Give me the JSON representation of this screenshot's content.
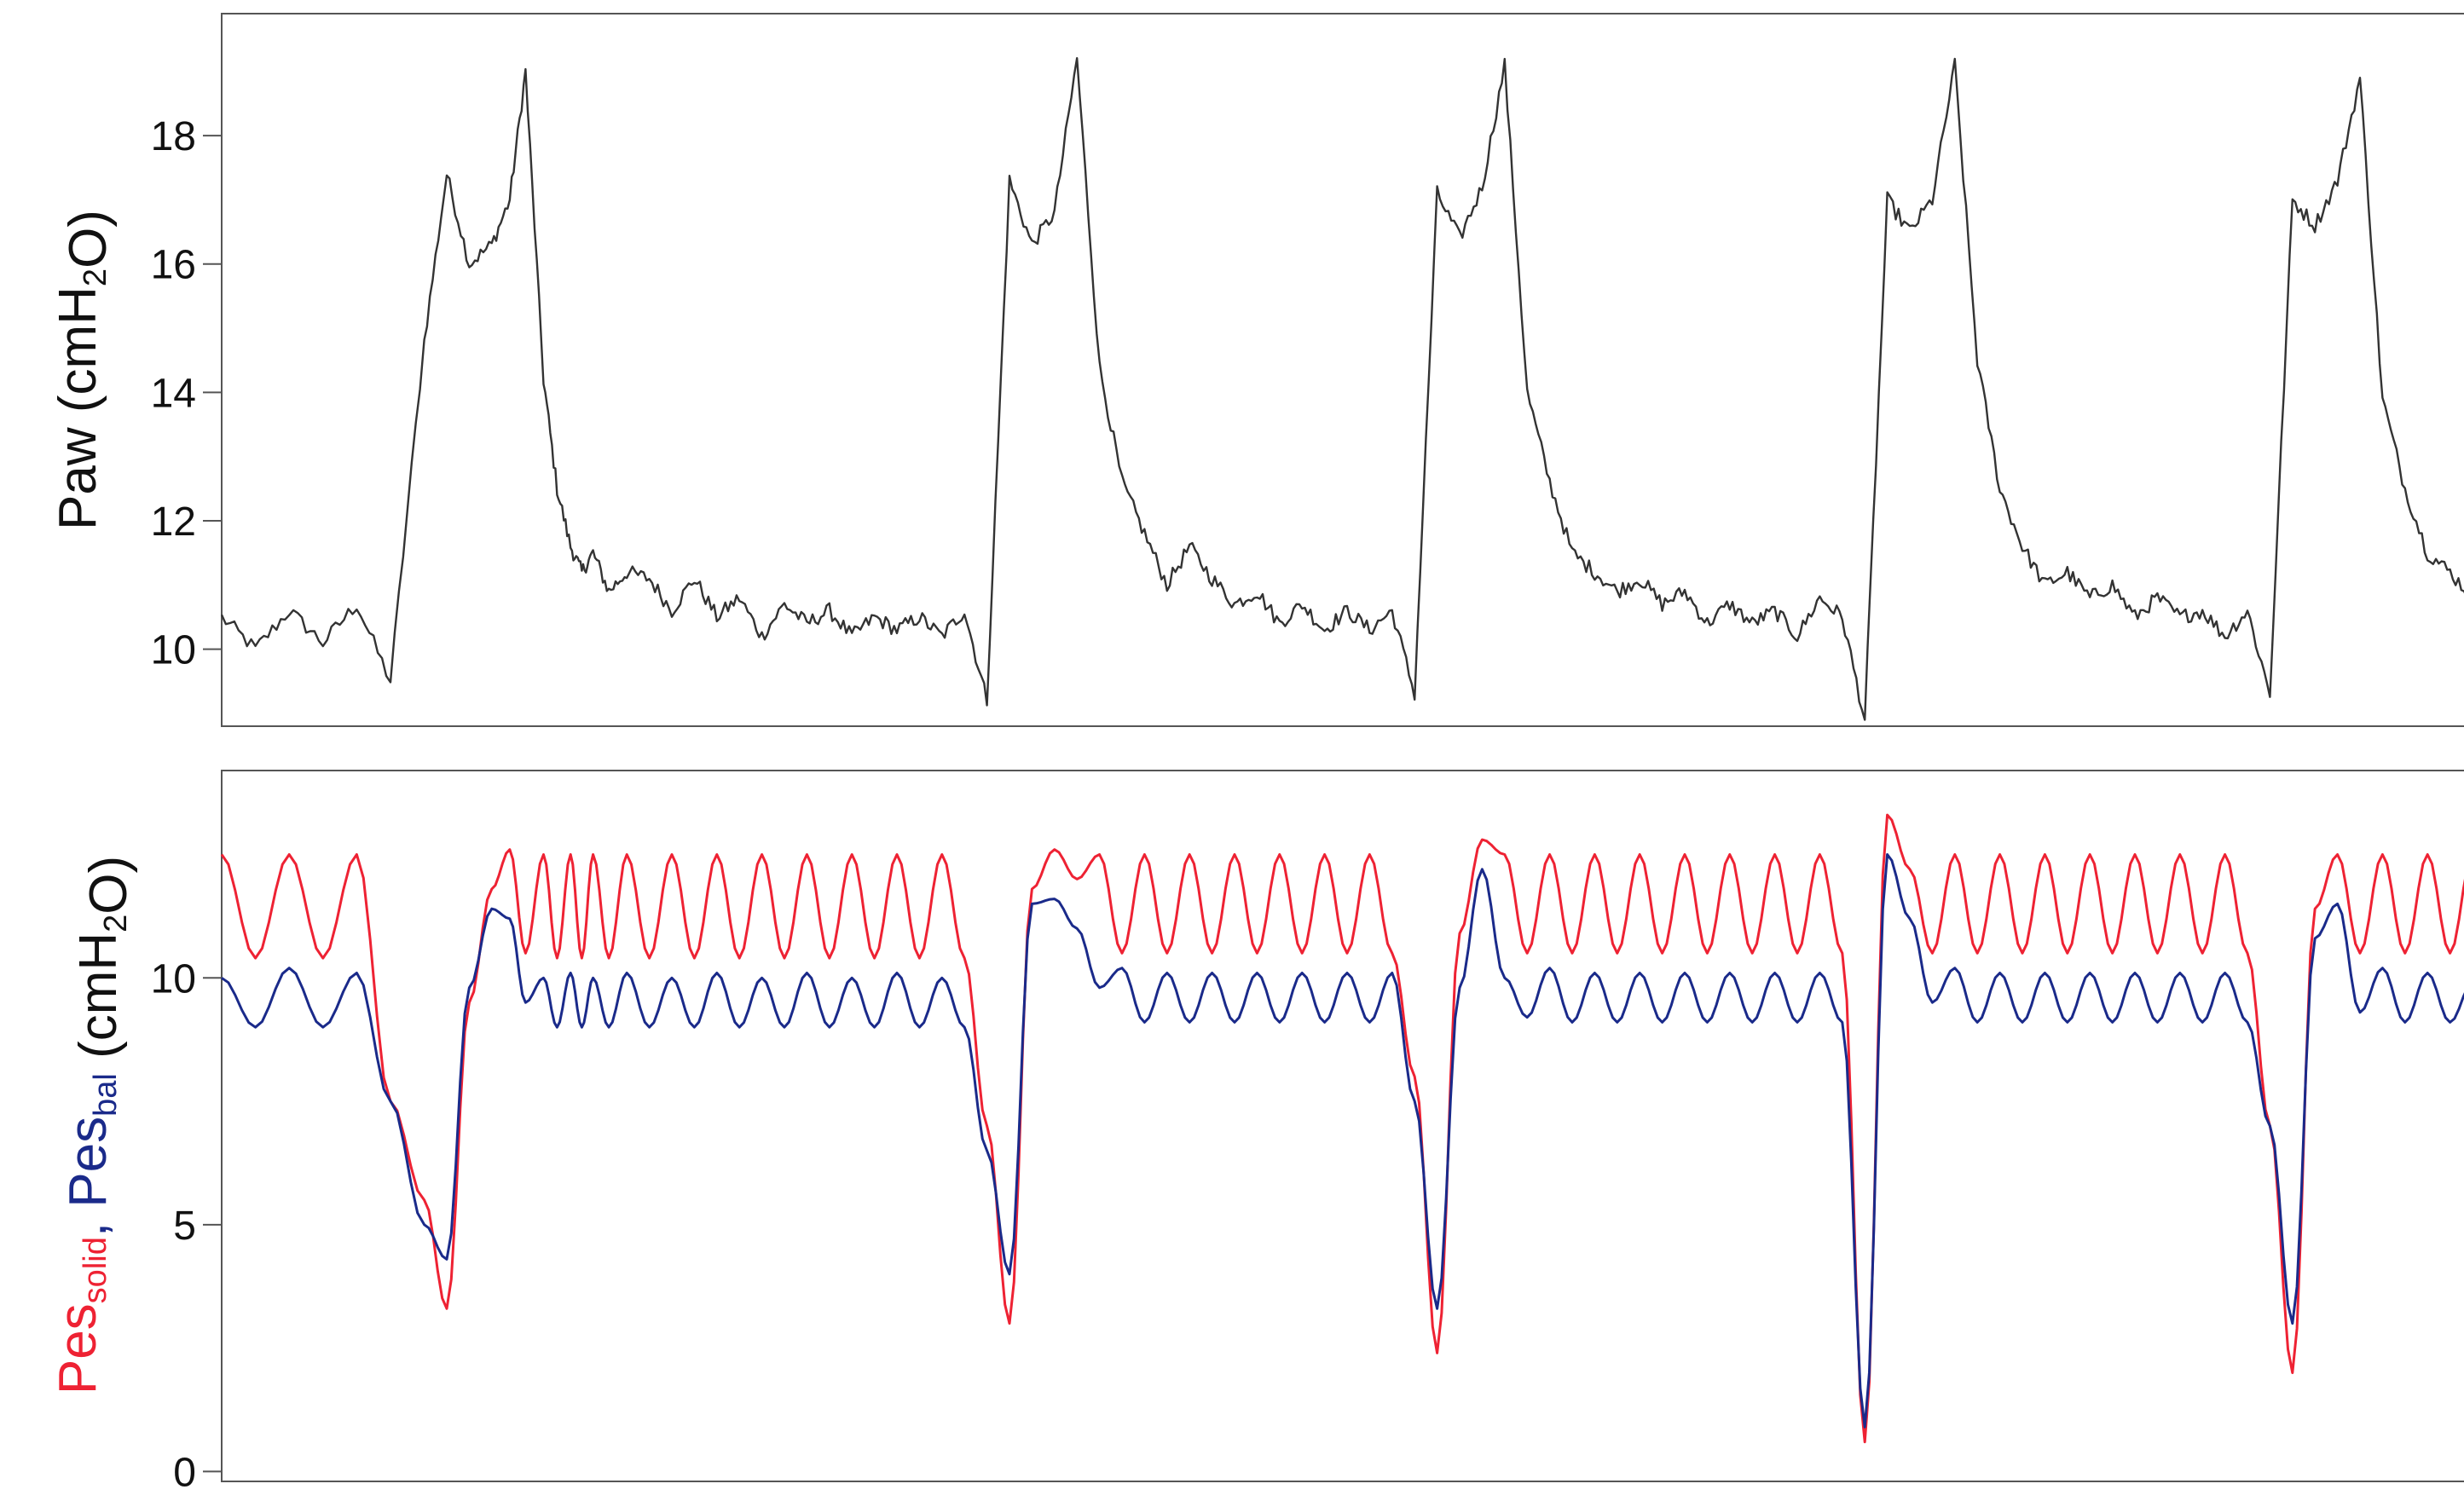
{
  "figure": {
    "background": "#ffffff"
  },
  "chart_data": [
    {
      "type": "line",
      "panel": "top",
      "ylabel": {
        "parts": [
          {
            "text": "Paw (cmH"
          },
          {
            "text": "2",
            "sub": true
          },
          {
            "text": "O)"
          }
        ]
      },
      "yticks": [
        10,
        12,
        14,
        16,
        18
      ],
      "ylim": [
        8.8,
        19.9
      ],
      "xlim": [
        0,
        100
      ],
      "grid": false,
      "legend": "none",
      "series": [
        {
          "color": "#333333",
          "noise": 0.12,
          "x": [
            0,
            1.5,
            3,
            4.5,
            6,
            7.5,
            9,
            10,
            11,
            12,
            12.8,
            13.5,
            14.3,
            14.9,
            15.5,
            16,
            16.5,
            17.2,
            18,
            19,
            20,
            21,
            22,
            23,
            24,
            25,
            26,
            27,
            28,
            29,
            30,
            31,
            32,
            33,
            34,
            35,
            36,
            37,
            38,
            39,
            40,
            41,
            42,
            43,
            44,
            45,
            46,
            47,
            48,
            49,
            50,
            51,
            52,
            53,
            54,
            55,
            56,
            57,
            58,
            59,
            60,
            61,
            62,
            63,
            64,
            65,
            66,
            67,
            68,
            69,
            70,
            71,
            72,
            73,
            74,
            75,
            76,
            77,
            78,
            79,
            80,
            81,
            82,
            83,
            84,
            85,
            86,
            87,
            88,
            89,
            90,
            91,
            92,
            93,
            94,
            95,
            96,
            97,
            98,
            99,
            100
          ],
          "y": [
            10.5,
            10.0,
            10.6,
            10.1,
            10.7,
            9.5,
            14.8,
            17.4,
            16.0,
            16.3,
            17.0,
            19.0,
            14.2,
            12.5,
            11.6,
            11.2,
            11.5,
            10.9,
            11.2,
            11.1,
            10.6,
            11.1,
            10.5,
            10.8,
            10.2,
            10.7,
            10.4,
            10.6,
            10.2,
            10.5,
            10.3,
            10.5,
            10.2,
            10.6,
            9.2,
            17.3,
            16.3,
            16.8,
            19.2,
            14.4,
            12.6,
            11.8,
            11.0,
            11.6,
            11.1,
            10.7,
            10.9,
            10.4,
            10.7,
            10.3,
            10.6,
            10.3,
            10.6,
            9.3,
            17.1,
            16.4,
            17.2,
            19.1,
            14.0,
            12.6,
            11.5,
            11.2,
            10.9,
            11.1,
            10.7,
            10.9,
            10.4,
            10.7,
            10.4,
            10.6,
            10.2,
            10.8,
            10.5,
            8.9,
            17.0,
            16.5,
            17.0,
            19.1,
            14.5,
            12.5,
            11.6,
            11.0,
            11.2,
            10.8,
            11.0,
            10.5,
            10.8,
            10.5,
            10.6,
            10.2,
            10.6,
            9.3,
            17.0,
            16.6,
            17.3,
            18.9,
            13.9,
            12.5,
            11.5,
            11.2,
            10.8
          ]
        }
      ]
    },
    {
      "type": "line",
      "panel": "bottom",
      "ylabel": {
        "parts": [
          {
            "text": "Pes",
            "color": "#ee2233"
          },
          {
            "text": "solid",
            "sub": true,
            "color": "#ee2233"
          },
          {
            "text": ", ",
            "color": "#1a2a8a"
          },
          {
            "text": "Pes",
            "color": "#1a2a8a"
          },
          {
            "text": "bal",
            "sub": true,
            "color": "#1a2a8a"
          },
          {
            "text": " (cmH",
            "color": "#111111"
          },
          {
            "text": "2",
            "sub": true,
            "color": "#111111"
          },
          {
            "text": "O)",
            "color": "#111111"
          }
        ]
      },
      "yticks": [
        0,
        5,
        10
      ],
      "ylim": [
        -0.2,
        14.2
      ],
      "xlim": [
        0,
        100
      ],
      "grid": false,
      "legend": "none",
      "series": [
        {
          "color": "#ee2233",
          "noise": 0,
          "x": [
            0,
            1.5,
            3,
            4.5,
            6,
            7.5,
            9,
            10,
            11,
            12,
            12.8,
            13.5,
            14.3,
            14.9,
            15.5,
            16,
            16.5,
            17.2,
            18,
            19,
            20,
            21,
            22,
            23,
            24,
            25,
            26,
            27,
            28,
            29,
            30,
            31,
            32,
            33,
            34,
            35,
            36,
            37,
            38,
            39,
            40,
            41,
            42,
            43,
            44,
            45,
            46,
            47,
            48,
            49,
            50,
            51,
            52,
            53,
            54,
            55,
            56,
            57,
            58,
            59,
            60,
            61,
            62,
            63,
            64,
            65,
            66,
            67,
            68,
            69,
            70,
            71,
            72,
            73,
            74,
            75,
            76,
            77,
            78,
            79,
            80,
            81,
            82,
            83,
            84,
            85,
            86,
            87,
            88,
            89,
            90,
            91,
            92,
            93,
            94,
            95,
            96,
            97,
            98,
            99,
            100
          ],
          "y": [
            12.5,
            10.4,
            12.5,
            10.4,
            12.5,
            7.5,
            5.5,
            3.3,
            9.5,
            11.8,
            12.6,
            10.5,
            12.5,
            10.4,
            12.5,
            10.4,
            12.5,
            10.4,
            12.5,
            10.4,
            12.5,
            10.4,
            12.5,
            10.4,
            12.5,
            10.4,
            12.5,
            10.4,
            12.5,
            10.4,
            12.5,
            10.4,
            12.5,
            10.4,
            7.0,
            3.0,
            11.8,
            12.6,
            12.0,
            12.5,
            10.5,
            12.5,
            10.5,
            12.5,
            10.5,
            12.5,
            10.5,
            12.5,
            10.5,
            12.5,
            10.5,
            12.5,
            10.5,
            8.0,
            2.4,
            10.9,
            12.8,
            12.5,
            10.5,
            12.5,
            10.5,
            12.5,
            10.5,
            12.5,
            10.5,
            12.5,
            10.5,
            12.5,
            10.5,
            12.5,
            10.5,
            12.5,
            10.5,
            0.6,
            13.3,
            12.2,
            10.5,
            12.5,
            10.5,
            12.5,
            10.5,
            12.5,
            10.5,
            12.5,
            10.5,
            12.5,
            10.5,
            12.5,
            10.5,
            12.5,
            10.5,
            7.0,
            2.0,
            11.4,
            12.5,
            10.5,
            12.5,
            10.5,
            12.5,
            10.5,
            12.5
          ]
        },
        {
          "color": "#1a2a8a",
          "noise": 0,
          "x": [
            0,
            1.5,
            3,
            4.5,
            6,
            7.5,
            9,
            10,
            11,
            12,
            12.8,
            13.5,
            14.3,
            14.9,
            15.5,
            16,
            16.5,
            17.2,
            18,
            19,
            20,
            21,
            22,
            23,
            24,
            25,
            26,
            27,
            28,
            29,
            30,
            31,
            32,
            33,
            34,
            35,
            36,
            37,
            38,
            39,
            40,
            41,
            42,
            43,
            44,
            45,
            46,
            47,
            48,
            49,
            50,
            51,
            52,
            53,
            54,
            55,
            56,
            57,
            58,
            59,
            60,
            61,
            62,
            63,
            64,
            65,
            66,
            67,
            68,
            69,
            70,
            71,
            72,
            73,
            74,
            75,
            76,
            77,
            78,
            79,
            80,
            81,
            82,
            83,
            84,
            85,
            86,
            87,
            88,
            89,
            90,
            91,
            92,
            93,
            94,
            95,
            96,
            97,
            98,
            99,
            100
          ],
          "y": [
            10.0,
            9.0,
            10.2,
            9.0,
            10.1,
            7.5,
            5.0,
            4.3,
            9.8,
            11.4,
            11.2,
            9.5,
            10.0,
            9.0,
            10.1,
            9.0,
            10.0,
            9.0,
            10.1,
            9.0,
            10.0,
            9.0,
            10.1,
            9.0,
            10.0,
            9.0,
            10.1,
            9.0,
            10.0,
            9.0,
            10.1,
            9.0,
            10.0,
            9.0,
            6.5,
            4.0,
            11.5,
            11.6,
            11.0,
            9.8,
            10.2,
            9.1,
            10.1,
            9.1,
            10.1,
            9.1,
            10.1,
            9.1,
            10.1,
            9.1,
            10.1,
            9.1,
            10.1,
            7.5,
            3.3,
            9.8,
            12.2,
            10.0,
            9.2,
            10.2,
            9.1,
            10.1,
            9.1,
            10.1,
            9.1,
            10.1,
            9.1,
            10.1,
            9.1,
            10.1,
            9.1,
            10.1,
            9.1,
            0.9,
            12.5,
            11.2,
            9.5,
            10.2,
            9.1,
            10.1,
            9.1,
            10.1,
            9.1,
            10.1,
            9.1,
            10.1,
            9.1,
            10.1,
            9.1,
            10.1,
            9.1,
            7.0,
            3.0,
            10.8,
            11.5,
            9.3,
            10.2,
            9.1,
            10.1,
            9.1,
            9.9
          ]
        }
      ]
    }
  ]
}
